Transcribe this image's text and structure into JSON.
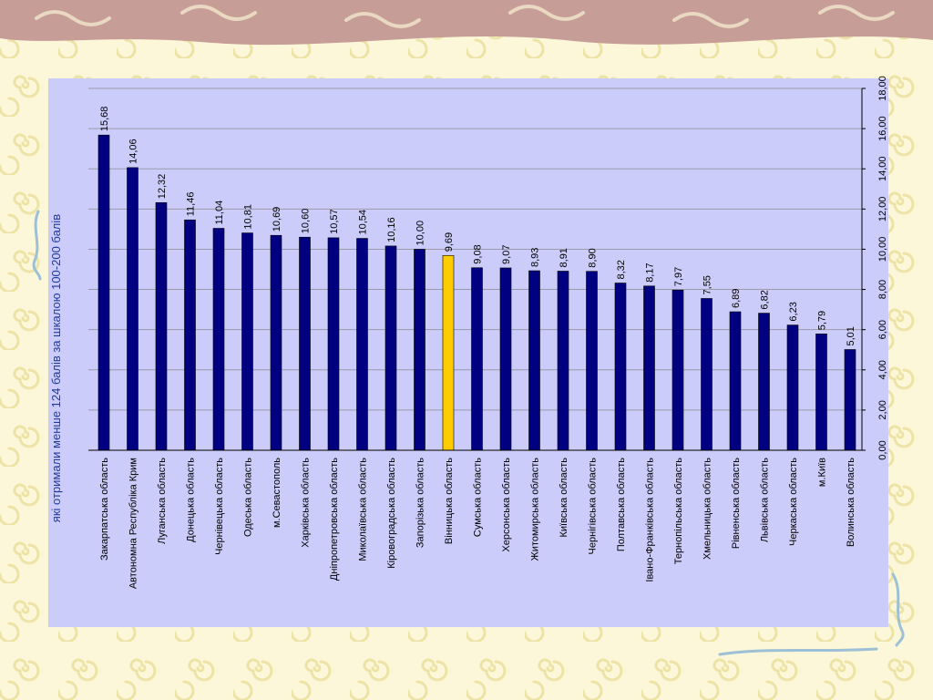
{
  "chart_data": {
    "type": "bar",
    "orientation": "rotated-90",
    "title": "які отримали менше 124 балів за шкалою 100-200 балів",
    "categories": [
      "Закарпатська область",
      "Автономна Республіка Крим",
      "Луганська область",
      "Донецька область",
      "Чернівецька область",
      "Одеська область",
      "м.Севастополь",
      "Харківська область",
      "Дніпропетровська область",
      "Миколаївська область",
      "Кіровоградська область",
      "Запорізька область",
      "Вінницька область",
      "Сумська область",
      "Херсонська область",
      "Житомирська область",
      "Київська область",
      "Чернігівська область",
      "Полтавська область",
      "Івано-Франківська область",
      "Тернопільська область",
      "Хмельницька область",
      "Рівненська область",
      "Львівська область",
      "Черкаська область",
      "м.Київ",
      "Волинська область"
    ],
    "values": [
      15.68,
      14.06,
      12.32,
      11.46,
      11.04,
      10.81,
      10.69,
      10.6,
      10.57,
      10.54,
      10.16,
      10.0,
      9.69,
      9.08,
      9.07,
      8.93,
      8.91,
      8.9,
      8.32,
      8.17,
      7.97,
      7.55,
      6.89,
      6.82,
      6.23,
      5.79,
      5.01
    ],
    "value_labels": [
      "15,68",
      "14,06",
      "12,32",
      "11,46",
      "11,04",
      "10,81",
      "10,69",
      "10,60",
      "10,57",
      "10,54",
      "10,16",
      "10,00",
      "9,69",
      "9,08",
      "9,07",
      "8,93",
      "8,91",
      "8,90",
      "8,32",
      "8,17",
      "7,97",
      "7,55",
      "6,89",
      "6,82",
      "6,23",
      "5,79",
      "5,01"
    ],
    "highlight_index": 12,
    "ylim": [
      0,
      18
    ],
    "yticks": [
      0,
      2,
      4,
      6,
      8,
      10,
      12,
      14,
      16,
      18
    ],
    "ytick_labels": [
      "0,00",
      "2,00",
      "4,00",
      "6,00",
      "8,00",
      "10,00",
      "12,00",
      "14,00",
      "16,00",
      "18,00"
    ],
    "grid": true
  },
  "colors": {
    "bar": "#000080",
    "highlight_bar": "#ffcc00",
    "plot_background": "#ccccfa",
    "gridline": "#9a9aa8",
    "title": "#1f3a9e",
    "slide_background": "#fbf7d8",
    "top_band": "#c79d97",
    "decor_swirl": "#ede3a7",
    "decor_stroke": "#9dc0d6"
  }
}
